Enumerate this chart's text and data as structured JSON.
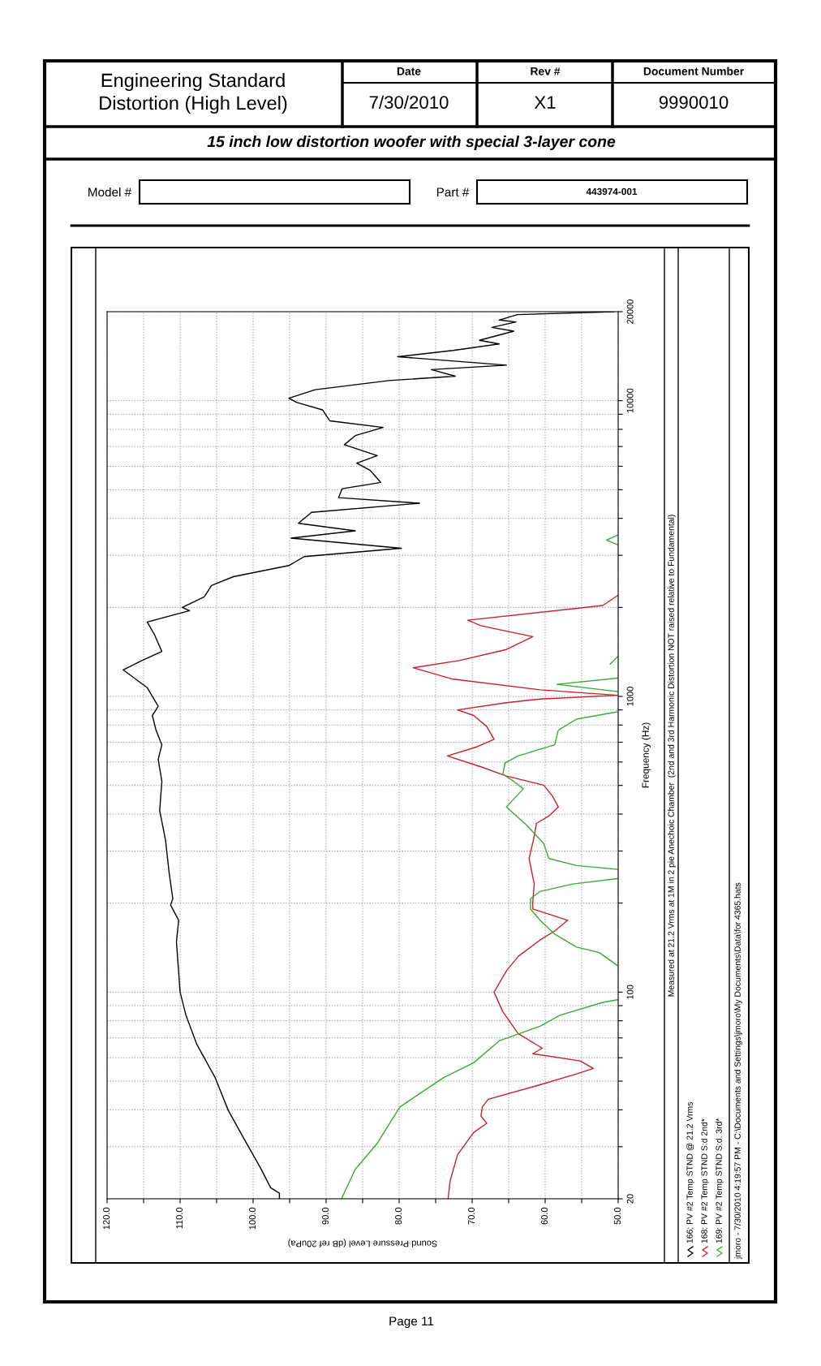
{
  "chart_data": {
    "type": "line",
    "title": "Engineering Standard\nDistortion (High Level)",
    "subtitle": "15 inch low distortion woofer with special 3-layer cone",
    "xlabel": "Sound Pressure Level (dB ref 20uPa)",
    "ylabel": "Frequency (Hz)",
    "log": "y",
    "xlim": [
      120,
      50
    ],
    "xticks": [
      {
        "value": 50,
        "label": "50.0"
      },
      {
        "value": 55,
        "label": null
      },
      {
        "value": 60,
        "label": "60.0"
      },
      {
        "value": 65,
        "label": null
      },
      {
        "value": 70,
        "label": "70.0"
      },
      {
        "value": 75,
        "label": null
      },
      {
        "value": 80,
        "label": "80.0"
      },
      {
        "value": 85,
        "label": null
      },
      {
        "value": 90,
        "label": "90.0"
      },
      {
        "value": 95,
        "label": null
      },
      {
        "value": 100,
        "label": "100.0"
      },
      {
        "value": 105,
        "label": null
      },
      {
        "value": 110,
        "label": "110.0"
      },
      {
        "value": 115,
        "label": null
      },
      {
        "value": 120,
        "label": "120.0"
      }
    ],
    "ylim": [
      20,
      20000
    ],
    "yticks": [
      20,
      {
        "value": 30,
        "label": null
      },
      {
        "value": 40,
        "label": null
      },
      {
        "value": 50,
        "label": null
      },
      {
        "value": 60,
        "label": null
      },
      {
        "value": 70,
        "label": null
      },
      {
        "value": 80,
        "label": null
      },
      {
        "value": 90,
        "label": null
      },
      100,
      {
        "value": 200,
        "label": null
      },
      {
        "value": 300,
        "label": null
      },
      {
        "value": 400,
        "label": null
      },
      {
        "value": 500,
        "label": null
      },
      {
        "value": 600,
        "label": null
      },
      {
        "value": 700,
        "label": null
      },
      {
        "value": 800,
        "label": null
      },
      {
        "value": 900,
        "label": null
      },
      1000,
      {
        "value": 2000,
        "label": null
      },
      {
        "value": 3000,
        "label": null
      },
      {
        "value": 4000,
        "label": null
      },
      {
        "value": 5000,
        "label": null
      },
      {
        "value": 6000,
        "label": null
      },
      {
        "value": 7000,
        "label": null
      },
      {
        "value": 8000,
        "label": null
      },
      {
        "value": 9000,
        "label": null
      },
      10000,
      20000
    ],
    "grid": true,
    "legend": "right",
    "series": [
      {
        "name": "166: PV #2 Temp STND @ 21.2 Vrms",
        "color": "#000000",
        "values": [
          20,
          20.9,
          21.8,
          25.2,
          30.8,
          39.8,
          51.4,
          66.5,
          83.5,
          100,
          148,
          175,
          197,
          207,
          253,
          327,
          411,
          516,
          612,
          686,
          769,
          862,
          926,
          1070,
          1230,
          1320,
          1420,
          1615,
          1785,
          1950,
          2000,
          2170,
          2370,
          2540,
          2770,
          2970,
          3170,
          3430,
          3630,
          3850,
          4190,
          4500,
          4700,
          5040,
          5290,
          5820,
          6150,
          6520,
          7100,
          7620,
          8120,
          8550,
          9310,
          9860,
          10200,
          10890,
          11700,
          12100,
          12740,
          13190,
          14080,
          14790,
          15560,
          16010,
          17190,
          17700,
          18460,
          18740,
          19550,
          20000
        ],
        "x": [
          96.4,
          96.4,
          97.6,
          98.9,
          100.9,
          103.4,
          105.2,
          107.7,
          109.2,
          110,
          110.5,
          110.2,
          111.3,
          111,
          111.5,
          112,
          112.8,
          112.5,
          113,
          112.5,
          113.3,
          113.8,
          113,
          114.5,
          117.8,
          115.3,
          112.5,
          113.5,
          114.5,
          108.7,
          109.7,
          106.7,
          105.7,
          102.7,
          95.1,
          93,
          79.7,
          94.8,
          86,
          93.8,
          92,
          77.2,
          88.3,
          87.8,
          82.5,
          84,
          85.8,
          83,
          87.5,
          86,
          82.2,
          89.5,
          90.5,
          94,
          95.1,
          91.5,
          81.4,
          72.3,
          75.6,
          65.3,
          80.2,
          72.6,
          66.3,
          69,
          64.3,
          67.3,
          64,
          66.3,
          63.8,
          50.6
        ]
      },
      {
        "name": "168: PV #2 Temp STND S:d 2nd*",
        "color": "#c8202a",
        "values": [
          20,
          23.1,
          28.2,
          33.5,
          36,
          38.1,
          40.9,
          43.4,
          48.6,
          52.9,
          55.2,
          58.5,
          61.9,
          64.6,
          72.4,
          85.9,
          100,
          118,
          132,
          150,
          161,
          175,
          191,
          201,
          232,
          283,
          336,
          372,
          394,
          423,
          460,
          501,
          538,
          578,
          629,
          676,
          716,
          791,
          862,
          900,
          952,
          980,
          1009,
          1053,
          1146,
          1250,
          1322,
          1441,
          1592,
          1662,
          1734,
          1810,
          2030,
          2200
        ],
        "x": [
          73.3,
          73,
          72,
          69.8,
          68,
          68.8,
          68.6,
          67.8,
          60.7,
          55.7,
          53.4,
          55.2,
          61.7,
          60.4,
          63.7,
          65.8,
          67,
          65.3,
          63.7,
          60.7,
          58.7,
          56.9,
          61.7,
          61.7,
          61.5,
          62.2,
          61.5,
          61.2,
          59.5,
          58.2,
          59,
          60.2,
          65.3,
          68.8,
          73.4,
          69.3,
          67,
          68,
          69.8,
          72,
          65.3,
          60.7,
          50.1,
          60.7,
          72.8,
          78.1,
          71.8,
          65.3,
          61.7,
          65.3,
          68.8,
          70.6,
          52.1,
          50
        ]
      },
      {
        "name": "169: PV #2 Temp STND S:d. 3rd*",
        "color": "#3aaa35",
        "values": [
          20,
          25.2,
          30.8,
          40.9,
          51.4,
          57.7,
          68.4,
          76.7,
          83.5,
          92.3,
          94.2,
          null,
          123,
          136,
          142,
          157,
          175,
          191,
          207,
          219,
          232,
          242,
          null,
          260,
          268,
          283,
          318,
          366,
          423,
          487,
          516,
          546,
          595,
          629,
          686,
          769,
          838,
          887,
          null,
          1038,
          1099,
          1153,
          null,
          1285,
          1361,
          null,
          3260,
          3380,
          3510
        ],
        "x": [
          87.9,
          86,
          83,
          79.9,
          73.9,
          69.8,
          66.3,
          60.7,
          58,
          52.1,
          50.1,
          null,
          50.1,
          52.6,
          55.7,
          58.7,
          60.7,
          62,
          62,
          60.7,
          56.2,
          50.1,
          null,
          50.1,
          55.7,
          59.5,
          60.2,
          62.5,
          65.3,
          63,
          64.3,
          65.8,
          65.5,
          63.7,
          58.7,
          58.2,
          55.7,
          50.1,
          null,
          50.1,
          58.4,
          50.1,
          null,
          51.1,
          50.1,
          null,
          50.1,
          51.6,
          50.1
        ]
      }
    ],
    "annotations": [
      "Date",
      "7/30/2010",
      "Rev #",
      "X1",
      "Document Number",
      "9990010",
      "Model #",
      "Part #",
      "443974-001",
      "Measured at 21.2 Vrms at 1M in 2 pie Anechoic Chamber  (2nd and 3rd Harmonic Distortion NOT raised relative to Fundamental)",
      "jmoro - 7/30/2010 4:19:57 PM - C:\\Documents and Settings\\jmoro\\My Documents\\Data\\for 4365.hats",
      "Page 11"
    ]
  }
}
